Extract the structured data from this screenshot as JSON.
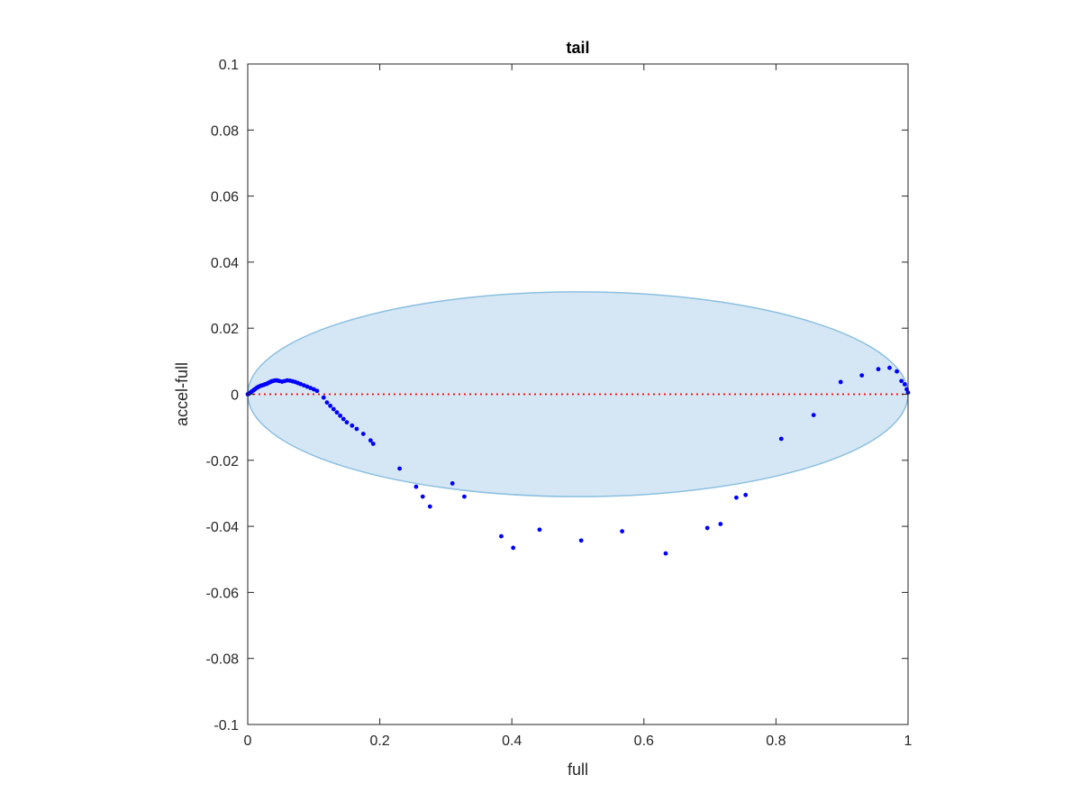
{
  "chart_data": {
    "type": "scatter",
    "title": "tail",
    "xlabel": "full",
    "ylabel": "accel-full",
    "xlim": [
      0,
      1
    ],
    "ylim": [
      -0.1,
      0.1
    ],
    "xticks": [
      0,
      0.2,
      0.4,
      0.6,
      0.8,
      1
    ],
    "xtick_labels": [
      "0",
      "0.2",
      "0.4",
      "0.6",
      "0.8",
      "1"
    ],
    "yticks": [
      -0.1,
      -0.08,
      -0.06,
      -0.04,
      -0.02,
      0,
      0.02,
      0.04,
      0.06,
      0.08,
      0.1
    ],
    "ytick_labels": [
      "-0.1",
      "-0.08",
      "-0.06",
      "-0.04",
      "-0.02",
      "0",
      "0.02",
      "0.04",
      "0.06",
      "0.08",
      "0.1"
    ],
    "grid": false,
    "reference_line": {
      "y": 0,
      "color": "#ff0000",
      "style": "dotted"
    },
    "ellipse": {
      "cx": 0.5,
      "cy": 0,
      "rx": 0.5,
      "ry": 0.031,
      "fill": "#d5e7f4",
      "stroke": "#8bbfe0"
    },
    "series": [
      {
        "color": "#0000ff",
        "points": [
          [
            0.0,
            0.0
          ],
          [
            0.002,
            0.0002
          ],
          [
            0.004,
            0.0005
          ],
          [
            0.006,
            0.0008
          ],
          [
            0.008,
            0.0011
          ],
          [
            0.01,
            0.0014
          ],
          [
            0.012,
            0.0017
          ],
          [
            0.014,
            0.002
          ],
          [
            0.016,
            0.0022
          ],
          [
            0.018,
            0.0024
          ],
          [
            0.02,
            0.0026
          ],
          [
            0.022,
            0.0027
          ],
          [
            0.024,
            0.0028
          ],
          [
            0.026,
            0.003
          ],
          [
            0.028,
            0.0031
          ],
          [
            0.03,
            0.0033
          ],
          [
            0.032,
            0.0035
          ],
          [
            0.034,
            0.0037
          ],
          [
            0.036,
            0.0039
          ],
          [
            0.038,
            0.004
          ],
          [
            0.04,
            0.0041
          ],
          [
            0.042,
            0.0042
          ],
          [
            0.044,
            0.0042
          ],
          [
            0.046,
            0.0041
          ],
          [
            0.048,
            0.004
          ],
          [
            0.052,
            0.0038
          ],
          [
            0.056,
            0.004
          ],
          [
            0.06,
            0.0042
          ],
          [
            0.064,
            0.0041
          ],
          [
            0.068,
            0.0039
          ],
          [
            0.072,
            0.0037
          ],
          [
            0.076,
            0.0034
          ],
          [
            0.08,
            0.0031
          ],
          [
            0.085,
            0.0027
          ],
          [
            0.09,
            0.0023
          ],
          [
            0.095,
            0.0019
          ],
          [
            0.1,
            0.0015
          ],
          [
            0.105,
            0.001
          ],
          [
            0.115,
            -0.001
          ],
          [
            0.12,
            -0.0025
          ],
          [
            0.125,
            -0.0035
          ],
          [
            0.13,
            -0.0045
          ],
          [
            0.135,
            -0.0055
          ],
          [
            0.14,
            -0.0065
          ],
          [
            0.145,
            -0.0075
          ],
          [
            0.15,
            -0.0085
          ],
          [
            0.158,
            -0.0095
          ],
          [
            0.165,
            -0.0105
          ],
          [
            0.175,
            -0.012
          ],
          [
            0.186,
            -0.014
          ],
          [
            0.19,
            -0.015
          ],
          [
            0.23,
            -0.0225
          ],
          [
            0.255,
            -0.028
          ],
          [
            0.265,
            -0.031
          ],
          [
            0.276,
            -0.034
          ],
          [
            0.31,
            -0.027
          ],
          [
            0.328,
            -0.031
          ],
          [
            0.384,
            -0.043
          ],
          [
            0.402,
            -0.0465
          ],
          [
            0.442,
            -0.041
          ],
          [
            0.505,
            -0.0443
          ],
          [
            0.567,
            -0.0415
          ],
          [
            0.633,
            -0.0482
          ],
          [
            0.696,
            -0.0405
          ],
          [
            0.716,
            -0.0393
          ],
          [
            0.74,
            -0.0313
          ],
          [
            0.754,
            -0.0305
          ],
          [
            0.808,
            -0.0135
          ],
          [
            0.857,
            -0.0063
          ],
          [
            0.898,
            0.0037
          ],
          [
            0.93,
            0.0057
          ],
          [
            0.955,
            0.0076
          ],
          [
            0.972,
            0.008
          ],
          [
            0.983,
            0.0069
          ],
          [
            0.99,
            0.004
          ],
          [
            0.995,
            0.003
          ],
          [
            0.998,
            0.0015
          ],
          [
            1.0,
            0.0005
          ]
        ]
      }
    ]
  }
}
